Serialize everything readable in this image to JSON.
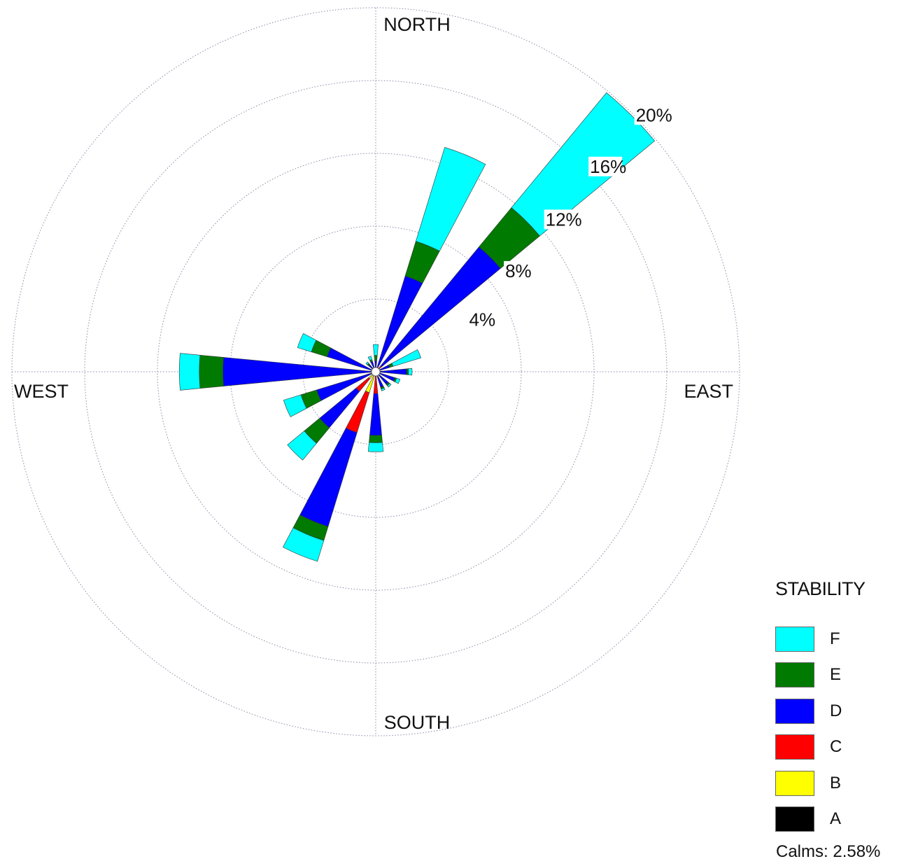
{
  "chart_data": {
    "type": "wind-rose",
    "directions": [
      "N",
      "NNE",
      "NE",
      "ENE",
      "E",
      "ESE",
      "SE",
      "SSE",
      "S",
      "SSW",
      "SW",
      "WSW",
      "W",
      "WNW",
      "NW",
      "NNW"
    ],
    "direction_labels": {
      "north": "NORTH",
      "east": "EAST",
      "south": "SOUTH",
      "west": "WEST"
    },
    "rings": [
      4,
      8,
      12,
      16,
      20
    ],
    "ring_labels": [
      "4%",
      "8%",
      "12%",
      "16%",
      "20%"
    ],
    "rmax": 20,
    "stability_classes": [
      "A",
      "B",
      "C",
      "D",
      "E",
      "F"
    ],
    "series": [
      {
        "name": "F",
        "color": "#00ffff",
        "values": [
          0.6,
          5.4,
          8.2,
          1.6,
          0.2,
          0.2,
          0.1,
          0.1,
          0.5,
          1.2,
          1.2,
          1.0,
          1.1,
          0.8,
          0.1,
          0.2
        ]
      },
      {
        "name": "E",
        "color": "#007a00",
        "values": [
          0.3,
          2.0,
          2.8,
          0.2,
          0.1,
          0.1,
          0.1,
          0.1,
          0.4,
          0.8,
          1.1,
          0.9,
          1.3,
          0.9,
          0.1,
          0.1
        ]
      },
      {
        "name": "D",
        "color": "#0000ff",
        "values": [
          0.6,
          5.4,
          8.5,
          0.6,
          1.6,
          1.0,
          0.7,
          0.6,
          2.3,
          5.4,
          2.6,
          3.1,
          8.3,
          2.7,
          0.5,
          0.6
        ]
      },
      {
        "name": "C",
        "color": "#ff0000",
        "values": [
          0.0,
          0.1,
          0.4,
          0.2,
          0.1,
          0.1,
          0.1,
          0.2,
          1.0,
          2.3,
          0.9,
          0.2,
          0.1,
          0.1,
          0.0,
          0.0
        ]
      },
      {
        "name": "B",
        "color": "#ffff00",
        "values": [
          0.0,
          0.0,
          0.0,
          0.0,
          0.0,
          0.0,
          0.1,
          0.1,
          0.2,
          1.2,
          0.5,
          0.1,
          0.0,
          0.0,
          0.0,
          0.0
        ]
      },
      {
        "name": "A",
        "color": "#000000",
        "values": [
          0,
          0,
          0,
          0,
          0,
          0,
          0,
          0,
          0,
          0,
          0,
          0,
          0,
          0,
          0,
          0
        ]
      }
    ],
    "calms": 2.58
  },
  "legend": {
    "title": "STABILITY",
    "items": [
      {
        "label": "F",
        "color": "#00ffff"
      },
      {
        "label": "E",
        "color": "#007a00"
      },
      {
        "label": "D",
        "color": "#0000ff"
      },
      {
        "label": "C",
        "color": "#ff0000"
      },
      {
        "label": "B",
        "color": "#ffff00"
      },
      {
        "label": "A",
        "color": "#000000"
      }
    ]
  },
  "calms_text": "Calms:  2.58%"
}
